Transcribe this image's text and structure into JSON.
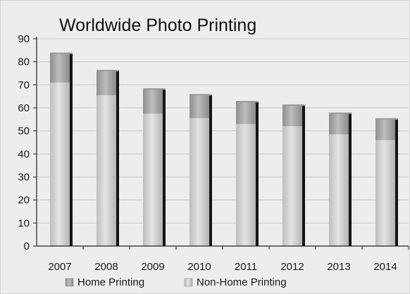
{
  "chart_data": {
    "type": "bar",
    "stacked": true,
    "title": "Worldwide Photo Printing",
    "xlabel": "",
    "ylabel": "",
    "categories": [
      "2007",
      "2008",
      "2009",
      "2010",
      "2011",
      "2012",
      "2013",
      "2014"
    ],
    "series": [
      {
        "name": "Non-Home Printing",
        "values": [
          71,
          65.5,
          57.5,
          55.5,
          53,
          52,
          48.5,
          46
        ]
      },
      {
        "name": "Home Printing",
        "values": [
          13,
          11,
          11,
          10.5,
          10,
          9.5,
          9.5,
          9.5
        ]
      }
    ],
    "ylim": [
      0,
      90
    ],
    "yticks": [
      0,
      10,
      20,
      30,
      40,
      50,
      60,
      70,
      80,
      90
    ],
    "grid": true,
    "legend_position": "bottom",
    "colors": {
      "non_home": "#d2d2d2",
      "home": "#a9a9a9",
      "shadow": "#151515",
      "grid": "#c9c9c9",
      "axis": "#222222"
    }
  }
}
